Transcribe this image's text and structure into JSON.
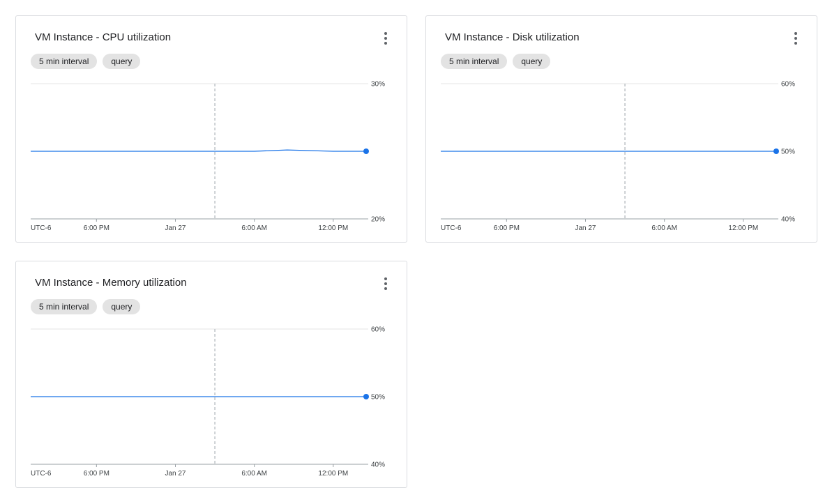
{
  "cards": [
    {
      "title": "VM Instance - CPU utilization",
      "chips": [
        "5 min interval",
        "query"
      ],
      "menu_icon": "more-vert-icon"
    },
    {
      "title": "VM Instance - Disk utilization",
      "chips": [
        "5 min interval",
        "query"
      ],
      "menu_icon": "more-vert-icon"
    },
    {
      "title": "VM Instance - Memory utilization",
      "chips": [
        "5 min interval",
        "query"
      ],
      "menu_icon": "more-vert-icon"
    }
  ],
  "chart_data": [
    {
      "type": "line",
      "title": "VM Instance - CPU utilization",
      "x_tick_labels": [
        "UTC-6",
        "6:00 PM",
        "Jan 27",
        "6:00 AM",
        "12:00 PM"
      ],
      "y_tick_labels": [
        "30%",
        "20%"
      ],
      "ylim": [
        20,
        30
      ],
      "marker_line": "Jan 27 ~03:00",
      "series": [
        {
          "x": [
            "Jan 26 13:00",
            "Jan 26 18:00",
            "Jan 27 00:00",
            "Jan 27 06:00",
            "Jan 27 08:30",
            "Jan 27 12:00",
            "Jan 27 14:30"
          ],
          "values": [
            25,
            25,
            25,
            25,
            25.1,
            25,
            25
          ],
          "color": "#1a73e8"
        }
      ],
      "grid": true
    },
    {
      "type": "line",
      "title": "VM Instance - Disk utilization",
      "x_tick_labels": [
        "UTC-6",
        "6:00 PM",
        "Jan 27",
        "6:00 AM",
        "12:00 PM"
      ],
      "y_tick_labels": [
        "60%",
        "50%",
        "40%"
      ],
      "ylim": [
        40,
        60
      ],
      "marker_line": "Jan 27 ~03:00",
      "series": [
        {
          "x": [
            "Jan 26 13:00",
            "Jan 27 14:30"
          ],
          "values": [
            50,
            50
          ],
          "color": "#1a73e8"
        }
      ],
      "grid": true
    },
    {
      "type": "line",
      "title": "VM Instance - Memory utilization",
      "x_tick_labels": [
        "UTC-6",
        "6:00 PM",
        "Jan 27",
        "6:00 AM",
        "12:00 PM"
      ],
      "y_tick_labels": [
        "60%",
        "50%",
        "40%"
      ],
      "ylim": [
        40,
        60
      ],
      "marker_line": "Jan 27 ~03:00",
      "series": [
        {
          "x": [
            "Jan 26 13:00",
            "Jan 27 14:30"
          ],
          "values": [
            50,
            50
          ],
          "color": "#1a73e8"
        }
      ],
      "grid": true
    }
  ]
}
